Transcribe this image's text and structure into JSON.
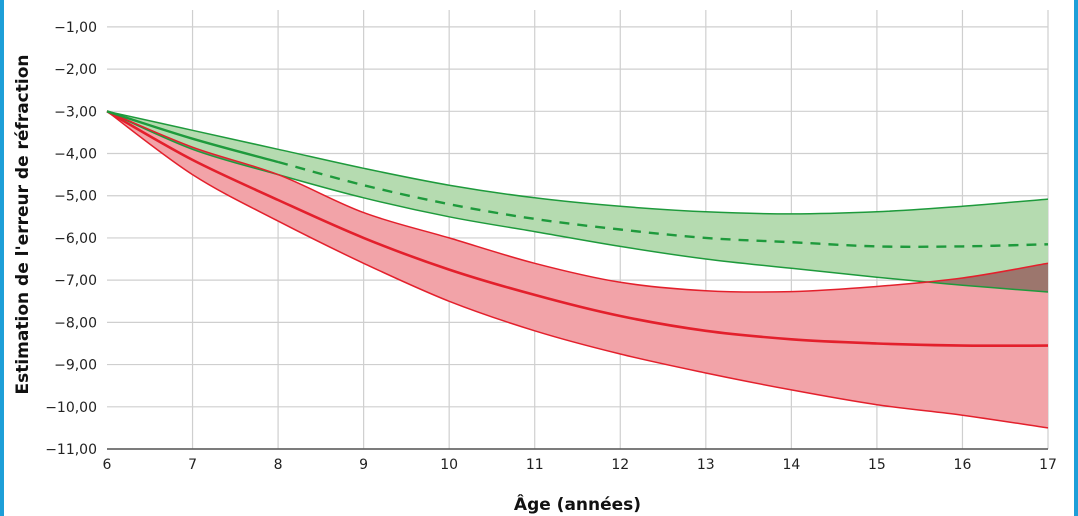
{
  "chart_data": {
    "type": "line",
    "title": "",
    "xlabel": "Âge (années)",
    "ylabel": "Estimation de l'erreur de réfraction",
    "xlim": [
      6,
      17
    ],
    "ylim": [
      -11,
      -0.6
    ],
    "x_ticks": [
      "6",
      "7",
      "8",
      "9",
      "10",
      "11",
      "12",
      "13",
      "14",
      "15",
      "16",
      "17"
    ],
    "y_ticks": [
      "−1,00",
      "−2,00",
      "−3,00",
      "−4,00",
      "−5,00",
      "−6,00",
      "−7,00",
      "−8,00",
      "−9,00",
      "−10,00",
      "−11,00"
    ],
    "y_tick_values": [
      -1,
      -2,
      -3,
      -4,
      -5,
      -6,
      -7,
      -8,
      -9,
      -10,
      -11
    ],
    "grid": true,
    "colors": {
      "green_line": "#1e9a3c",
      "green_fill": "#b5dbb0",
      "red_line": "#e3202c",
      "red_fill": "#f2a3a8",
      "overlap_fill": "#8d6f63",
      "grid": "#cfcfcf",
      "border": "#1d9fd8"
    },
    "series": [
      {
        "color": "green",
        "x": [
          6,
          7,
          8,
          9,
          10,
          11,
          12,
          13,
          14,
          15,
          16,
          17
        ],
        "values": [
          -3.0,
          -3.65,
          -4.2,
          -4.75,
          -5.2,
          -5.55,
          -5.8,
          -6.0,
          -6.1,
          -6.2,
          -6.2,
          -6.15
        ],
        "style_before_x8": "solid",
        "style_after_x8": "dashed",
        "band_upper": [
          -3.0,
          -3.45,
          -3.9,
          -4.35,
          -4.75,
          -5.05,
          -5.25,
          -5.38,
          -5.43,
          -5.38,
          -5.25,
          -5.08
        ],
        "band_lower": [
          -3.0,
          -3.9,
          -4.5,
          -5.05,
          -5.5,
          -5.85,
          -6.2,
          -6.5,
          -6.72,
          -6.93,
          -7.12,
          -7.28
        ]
      },
      {
        "color": "red",
        "x": [
          6,
          7,
          8,
          9,
          10,
          11,
          12,
          13,
          14,
          15,
          16,
          17
        ],
        "values": [
          -3.0,
          -4.15,
          -5.1,
          -6.0,
          -6.75,
          -7.35,
          -7.85,
          -8.2,
          -8.4,
          -8.5,
          -8.55,
          -8.55
        ],
        "band_upper": [
          -3.0,
          -3.85,
          -4.5,
          -5.4,
          -6.0,
          -6.6,
          -7.05,
          -7.25,
          -7.27,
          -7.15,
          -6.95,
          -6.6
        ],
        "band_lower": [
          -3.0,
          -4.5,
          -5.6,
          -6.6,
          -7.5,
          -8.2,
          -8.75,
          -9.2,
          -9.6,
          -9.95,
          -10.2,
          -10.5
        ]
      }
    ]
  }
}
